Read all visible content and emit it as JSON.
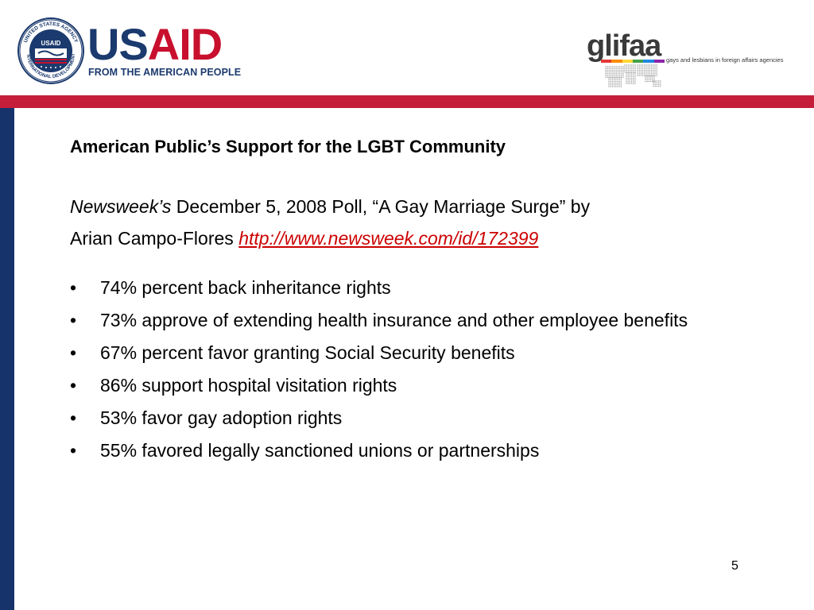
{
  "header": {
    "usaid_logo": {
      "word_us": "US",
      "word_aid": "AID",
      "tagline": "FROM THE AMERICAN PEOPLE",
      "seal_text": "UNITED STATES AGENCY INTERNATIONAL DEVELOPMENT",
      "seal_center": "USAID"
    },
    "glifaa_logo": {
      "word": "glifaa",
      "tagline": "gays and lesbians in foreign affairs agencies",
      "rainbow": [
        "#e53935",
        "#fb8c00",
        "#fdd835",
        "#43a047",
        "#1e88e5",
        "#8e24aa"
      ]
    }
  },
  "colors": {
    "red_band": "#c41e3a",
    "blue_bar": "#16336b",
    "usaid_blue": "#1b3a6e",
    "usaid_red": "#c8102e",
    "link": "#cc0000"
  },
  "slide": {
    "title": "American Public’s Support for the LGBT Community",
    "citation": {
      "publication": "Newsweek’s",
      "line1_rest": " December 5, 2008 Poll, “A Gay Marriage Surge” by",
      "line2_text": "Arian Campo-Flores ",
      "link": "http://www.newsweek.com/id/172399"
    },
    "bullets": [
      "74% percent back inheritance rights",
      "73% approve of extending health insurance and other employee benefits",
      "67% percent favor granting Social Security benefits",
      "86% support hospital visitation rights",
      "53% favor gay adoption rights",
      "55% favored legally sanctioned unions or partnerships"
    ],
    "bullet_glyph": "•",
    "page_number": "5"
  }
}
